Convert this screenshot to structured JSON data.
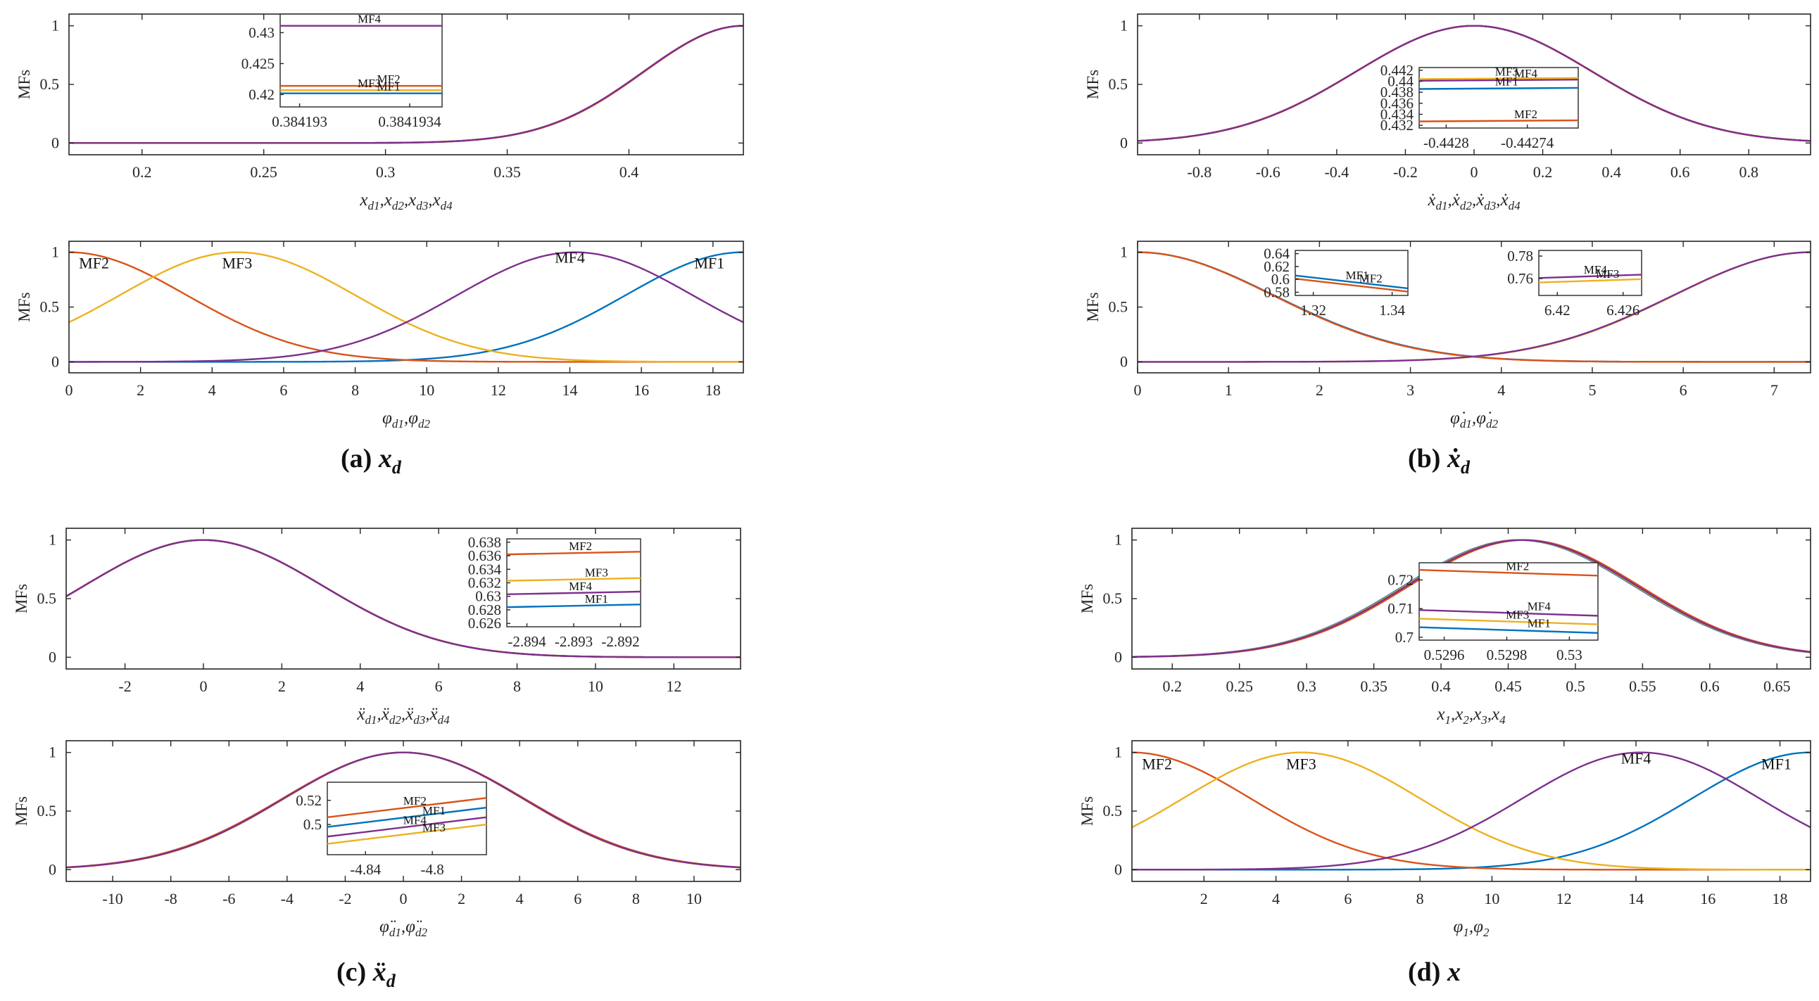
{
  "figure": {
    "colors": {
      "MF1": "#0072BD",
      "MF2": "#D95319",
      "MF3": "#EDB120",
      "MF4": "#7E2F8E",
      "axis": "#262626"
    },
    "captions": [
      {
        "label": "(a)",
        "symbol": "x",
        "sub": "d"
      },
      {
        "label": "(b)",
        "symbol": "ẋ",
        "sub": "d"
      },
      {
        "label": "(c)",
        "symbol": "ẍ",
        "sub": "d"
      },
      {
        "label": "(d)",
        "symbol": "x",
        "sub": ""
      }
    ]
  },
  "chart_data": [
    {
      "panel": "a-top",
      "type": "line",
      "ylabel": "MFs",
      "xlabel": "xd1,xd2,xd3,xd4",
      "xlim": [
        0.17,
        0.447
      ],
      "ylim": [
        -0.1,
        1.1
      ],
      "xticks": [
        "0.2",
        "0.25",
        "0.3",
        "0.35",
        "0.4"
      ],
      "yticks": [
        "0",
        "0.5",
        "1"
      ],
      "series": [
        {
          "name": "MF1",
          "center": 0.447,
          "sigma": 0.041
        },
        {
          "name": "MF2",
          "center": 0.4472,
          "sigma": 0.0411
        },
        {
          "name": "MF3",
          "center": 0.4471,
          "sigma": 0.041
        },
        {
          "name": "MF4",
          "center": 0.447,
          "sigma": 0.0412
        }
      ],
      "inset": {
        "xticks": [
          "0.384193",
          "0.3841934"
        ],
        "yticks": [
          "0.43",
          "0.425",
          "0.42"
        ],
        "ylim": [
          0.418,
          0.433
        ],
        "lines": [
          {
            "name": "MF4",
            "y0": 0.4311,
            "y1": 0.4311
          },
          {
            "name": "MF2",
            "y0": 0.4214,
            "y1": 0.4214
          },
          {
            "name": "MF3",
            "y0": 0.4207,
            "y1": 0.4207
          },
          {
            "name": "MF1",
            "y0": 0.4202,
            "y1": 0.4202
          }
        ],
        "labels": [
          "MF4",
          "MF2",
          "MF3",
          "MF1"
        ]
      }
    },
    {
      "panel": "a-bottom",
      "type": "line",
      "ylabel": "MFs",
      "xlabel": "φd1,φd2",
      "xlim": [
        0,
        18.85
      ],
      "ylim": [
        -0.1,
        1.1
      ],
      "xticks": [
        "0",
        "2",
        "4",
        "6",
        "8",
        "10",
        "12",
        "14",
        "16",
        "18"
      ],
      "yticks": [
        "0",
        "0.5",
        "1"
      ],
      "series": [
        {
          "name": "MF1",
          "center": 18.85,
          "sigma": 3.3
        },
        {
          "name": "MF2",
          "center": 0,
          "sigma": 3.3
        },
        {
          "name": "MF3",
          "center": 4.71,
          "sigma": 3.3
        },
        {
          "name": "MF4",
          "center": 14.14,
          "sigma": 3.3
        }
      ],
      "labels": [
        "MF2",
        "MF3",
        "MF4",
        "MF1"
      ]
    },
    {
      "panel": "b-top",
      "type": "line",
      "ylabel": "MFs",
      "xlabel": "ẋd1,ẋd2,ẋd3,ẋd4",
      "xlim": [
        -0.98,
        0.98
      ],
      "ylim": [
        -0.1,
        1.1
      ],
      "xticks": [
        "-0.8",
        "-0.6",
        "-0.4",
        "-0.2",
        "0",
        "0.2",
        "0.4",
        "0.6",
        "0.8"
      ],
      "yticks": [
        "0",
        "0.5",
        "1"
      ],
      "series": [
        {
          "name": "MF1",
          "center": 0,
          "sigma": 0.3458
        },
        {
          "name": "MF2",
          "center": 0,
          "sigma": 0.3449
        },
        {
          "name": "MF3",
          "center": 0,
          "sigma": 0.3461
        },
        {
          "name": "MF4",
          "center": 0,
          "sigma": 0.346
        }
      ],
      "inset": {
        "xticks": [
          "-0.4428",
          "-0.44274"
        ],
        "yticks": [
          "0.442",
          "0.44",
          "0.438",
          "0.436",
          "0.434",
          "0.432"
        ],
        "ylim": [
          0.4315,
          0.4425
        ],
        "lines": [
          {
            "name": "MF3",
            "y0": 0.4404,
            "y1": 0.4406
          },
          {
            "name": "MF4",
            "y0": 0.4401,
            "y1": 0.4403
          },
          {
            "name": "MF1",
            "y0": 0.4386,
            "y1": 0.4388
          },
          {
            "name": "MF2",
            "y0": 0.4327,
            "y1": 0.4329
          }
        ],
        "labels": [
          "MF3",
          "MF4",
          "MF1",
          "MF2"
        ]
      }
    },
    {
      "panel": "b-bottom",
      "type": "line",
      "ylabel": "MFs",
      "xlabel": "φ̇d1,φ̇d2",
      "xlim": [
        0,
        7.4
      ],
      "ylim": [
        -0.1,
        1.1
      ],
      "xticks": [
        "0",
        "1",
        "2",
        "3",
        "4",
        "5",
        "6",
        "7"
      ],
      "yticks": [
        "0",
        "0.5",
        "1"
      ],
      "series": [
        {
          "name": "MF1",
          "center": 0,
          "sigma": 1.5
        },
        {
          "name": "MF2",
          "center": 0,
          "sigma": 1.49
        },
        {
          "name": "MF3",
          "center": 7.4,
          "sigma": 1.5
        },
        {
          "name": "MF4",
          "center": 7.4,
          "sigma": 1.51
        }
      ],
      "insets": [
        {
          "xticks": [
            "1.32",
            "1.34"
          ],
          "yticks": [
            "0.64",
            "0.62",
            "0.6",
            "0.58"
          ],
          "ylim": [
            0.575,
            0.645
          ],
          "lines": [
            {
              "name": "MF1",
              "y0": 0.606,
              "y1": 0.586
            },
            {
              "name": "MF2",
              "y0": 0.601,
              "y1": 0.581
            }
          ],
          "labels": [
            "MF1",
            "MF2"
          ]
        },
        {
          "xticks": [
            "6.42",
            "6.426"
          ],
          "yticks": [
            "0.78",
            "0.76"
          ],
          "ylim": [
            0.745,
            0.785
          ],
          "lines": [
            {
              "name": "MF4",
              "y0": 0.7605,
              "y1": 0.7635
            },
            {
              "name": "MF3",
              "y0": 0.7565,
              "y1": 0.7595
            }
          ],
          "labels": [
            "MF4",
            "MF3"
          ]
        }
      ]
    },
    {
      "panel": "c-top",
      "type": "line",
      "ylabel": "MFs",
      "xlabel": "ẍd1,ẍd2,ẍd3,ẍd4",
      "xlim": [
        -3.5,
        13.7
      ],
      "ylim": [
        -0.1,
        1.1
      ],
      "xticks": [
        "-2",
        "0",
        "2",
        "4",
        "6",
        "8",
        "10",
        "12"
      ],
      "yticks": [
        "0",
        "0.5",
        "1"
      ],
      "series": [
        {
          "name": "MF1",
          "center": 0,
          "sigma": 3.056
        },
        {
          "name": "MF2",
          "center": 0,
          "sigma": 3.064
        },
        {
          "name": "MF3",
          "center": 0,
          "sigma": 3.06
        },
        {
          "name": "MF4",
          "center": 0,
          "sigma": 3.058
        }
      ],
      "inset": {
        "xticks": [
          "-2.894",
          "-2.893",
          "-2.892"
        ],
        "yticks": [
          "0.638",
          "0.636",
          "0.634",
          "0.632",
          "0.63",
          "0.628",
          "0.626"
        ],
        "ylim": [
          0.6255,
          0.6385
        ],
        "lines": [
          {
            "name": "MF2",
            "y0": 0.6362,
            "y1": 0.6366
          },
          {
            "name": "MF3",
            "y0": 0.6323,
            "y1": 0.6327
          },
          {
            "name": "MF4",
            "y0": 0.6303,
            "y1": 0.6307
          },
          {
            "name": "MF1",
            "y0": 0.6284,
            "y1": 0.6288
          }
        ],
        "labels": [
          "MF2",
          "MF3",
          "MF4",
          "MF1"
        ]
      }
    },
    {
      "panel": "c-bottom",
      "type": "line",
      "ylabel": "MFs",
      "xlabel": "φ̈d1,φ̈d2",
      "xlim": [
        -11.6,
        11.6
      ],
      "ylim": [
        -0.1,
        1.1
      ],
      "xticks": [
        "-10",
        "-8",
        "-6",
        "-4",
        "-2",
        "0",
        "2",
        "4",
        "6",
        "8",
        "10"
      ],
      "yticks": [
        "0",
        "0.5",
        "1"
      ],
      "series": [
        {
          "name": "MF1",
          "center": 0,
          "sigma": 4.13
        },
        {
          "name": "MF2",
          "center": 0,
          "sigma": 4.16
        },
        {
          "name": "MF3",
          "center": 0,
          "sigma": 4.1
        },
        {
          "name": "MF4",
          "center": 0,
          "sigma": 4.12
        }
      ],
      "inset": {
        "xticks": [
          "-4.84",
          "-4.8"
        ],
        "yticks": [
          "0.52",
          "0.5"
        ],
        "ylim": [
          0.475,
          0.535
        ],
        "lines": [
          {
            "name": "MF2",
            "y0": 0.506,
            "y1": 0.522
          },
          {
            "name": "MF1",
            "y0": 0.498,
            "y1": 0.514
          },
          {
            "name": "MF4",
            "y0": 0.49,
            "y1": 0.506
          },
          {
            "name": "MF3",
            "y0": 0.484,
            "y1": 0.5
          }
        ],
        "labels": [
          "MF2",
          "MF1",
          "MF4",
          "MF3"
        ]
      }
    },
    {
      "panel": "d-top",
      "type": "line",
      "ylabel": "MFs",
      "xlabel": "x1,x2,x3,x4",
      "xlim": [
        0.17,
        0.675
      ],
      "ylim": [
        -0.1,
        1.1
      ],
      "xticks": [
        "0.2",
        "0.25",
        "0.3",
        "0.35",
        "0.4",
        "0.45",
        "0.5",
        "0.55",
        "0.6",
        "0.65"
      ],
      "yticks": [
        "0",
        "0.5",
        "1"
      ],
      "series": [
        {
          "name": "MF1",
          "center": 0.458,
          "sigma": 0.086
        },
        {
          "name": "MF2",
          "center": 0.462,
          "sigma": 0.086
        },
        {
          "name": "MF3",
          "center": 0.459,
          "sigma": 0.086
        },
        {
          "name": "MF4",
          "center": 0.46,
          "sigma": 0.086
        }
      ],
      "inset": {
        "xticks": [
          "0.5296",
          "0.5298",
          "0.53"
        ],
        "yticks": [
          "0.72",
          "0.71",
          "0.7"
        ],
        "ylim": [
          0.699,
          0.726
        ],
        "lines": [
          {
            "name": "MF2",
            "y0": 0.7235,
            "y1": 0.7215
          },
          {
            "name": "MF4",
            "y0": 0.7095,
            "y1": 0.7075
          },
          {
            "name": "MF3",
            "y0": 0.7065,
            "y1": 0.7045
          },
          {
            "name": "MF1",
            "y0": 0.7035,
            "y1": 0.7015
          }
        ],
        "labels": [
          "MF2",
          "MF4",
          "MF3",
          "MF1"
        ]
      }
    },
    {
      "panel": "d-bottom",
      "type": "line",
      "ylabel": "MFs",
      "xlabel": "φ1,φ2",
      "xlim": [
        0,
        18.85
      ],
      "ylim": [
        -0.1,
        1.1
      ],
      "xticks": [
        "2",
        "4",
        "6",
        "8",
        "10",
        "12",
        "14",
        "16",
        "18"
      ],
      "yticks": [
        "0",
        "0.5",
        "1"
      ],
      "series": [
        {
          "name": "MF1",
          "center": 18.85,
          "sigma": 3.3
        },
        {
          "name": "MF2",
          "center": 0,
          "sigma": 3.3
        },
        {
          "name": "MF3",
          "center": 4.71,
          "sigma": 3.3
        },
        {
          "name": "MF4",
          "center": 14.14,
          "sigma": 3.3
        }
      ],
      "labels": [
        "MF2",
        "MF3",
        "MF4",
        "MF1"
      ]
    }
  ]
}
